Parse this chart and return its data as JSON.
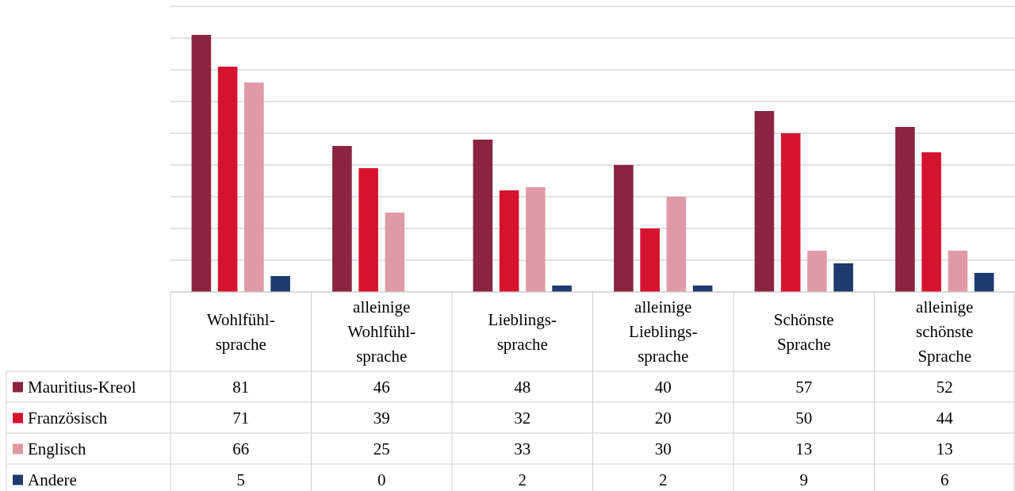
{
  "chart_data": {
    "type": "bar",
    "categories": [
      "Wohlfühl-sprache",
      "alleinige Wohlfühl-sprache",
      "Lieblings-sprache",
      "alleinige Lieblings-sprache",
      "Schönste Sprache",
      "alleinige schönste Sprache"
    ],
    "series": [
      {
        "name": "Mauritius-Kreol",
        "color": "#8b2442",
        "values": [
          81,
          46,
          48,
          40,
          57,
          52
        ]
      },
      {
        "name": "Französisch",
        "color": "#d6132f",
        "values": [
          71,
          39,
          32,
          20,
          50,
          44
        ]
      },
      {
        "name": "Englisch",
        "color": "#e09aa7",
        "values": [
          66,
          25,
          33,
          30,
          13,
          13
        ]
      },
      {
        "name": "Andere",
        "color": "#1f3a6e",
        "values": [
          5,
          0,
          2,
          2,
          9,
          6
        ]
      }
    ],
    "ylim": [
      0,
      90
    ],
    "yticks": [
      {
        "value": 0,
        "label": null
      },
      {
        "value": 10,
        "label": null
      },
      {
        "value": 20,
        "label": null
      },
      {
        "value": 30,
        "label": null
      },
      {
        "value": 40,
        "label": null
      },
      {
        "value": 50,
        "label": null
      },
      {
        "value": 60,
        "label": null
      },
      {
        "value": 70,
        "label": null
      },
      {
        "value": 80,
        "label": null
      },
      {
        "value": 90,
        "label": null
      }
    ],
    "tick_labels": "x",
    "grid": "y",
    "legend": "bottom",
    "data_labels": true
  }
}
